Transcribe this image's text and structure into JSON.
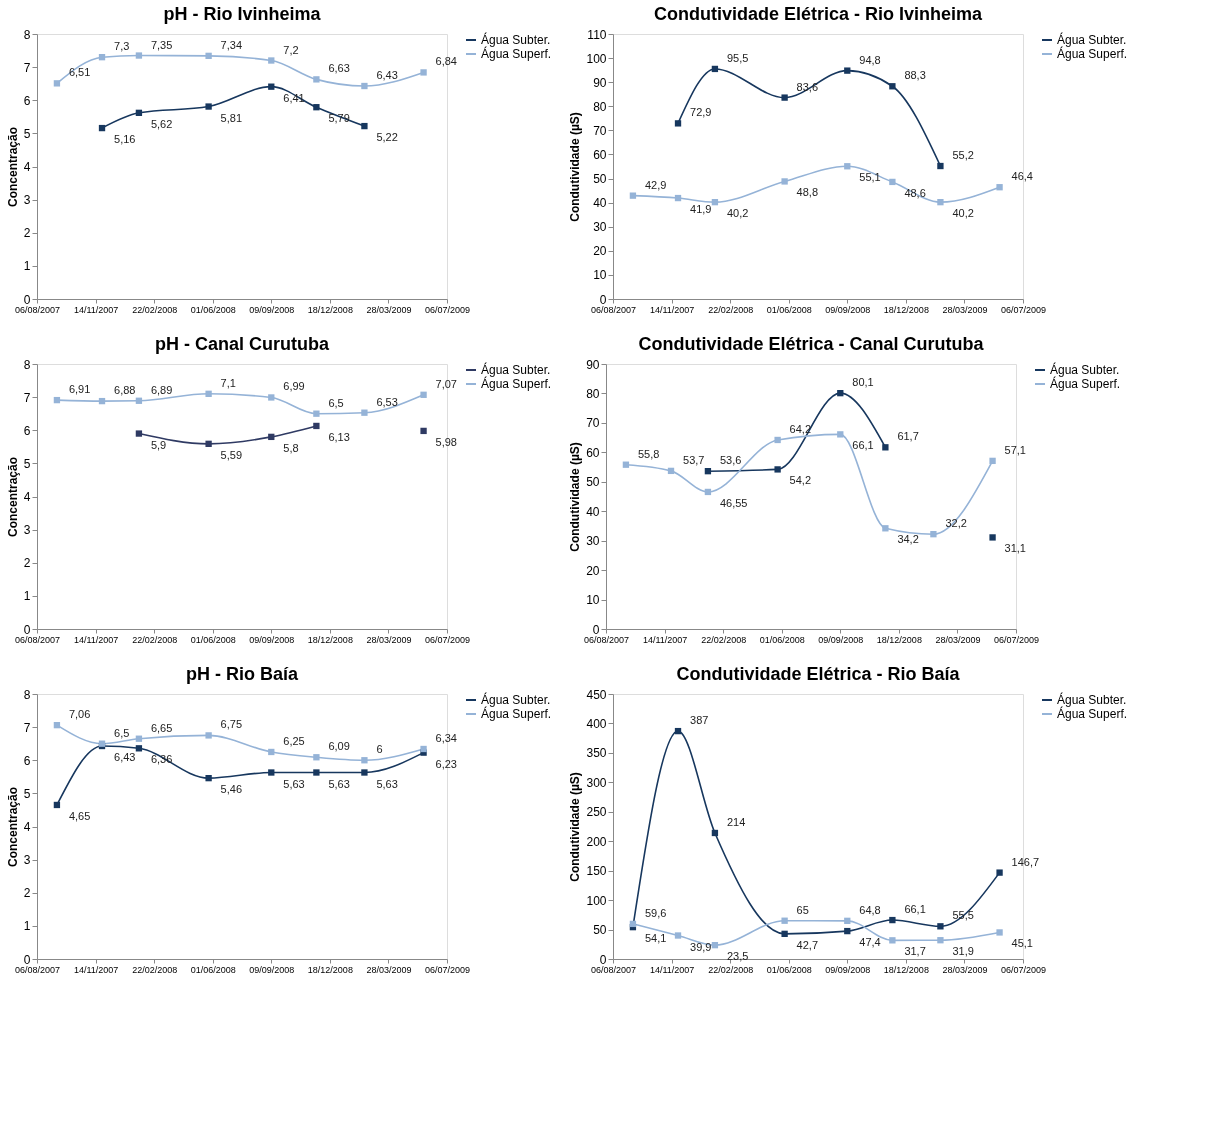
{
  "chart_data": [
    {
      "type": "line",
      "title": "pH - Rio Ivinheima",
      "ylabel": "Concentração",
      "x": [
        "2007-09-09",
        "2007-11-25",
        "2008-01-27",
        "2008-05-25",
        "2008-09-09",
        "2008-11-25",
        "2009-02-15",
        "2009-05-27"
      ],
      "xlim": [
        "2007-08-06",
        "2009-07-06"
      ],
      "xticks": [
        {
          "value": "2007-08-06",
          "label": "06/08/2007"
        },
        {
          "value": "2007-11-14",
          "label": "14/11/2007"
        },
        {
          "value": "2008-02-22",
          "label": "22/02/2008"
        },
        {
          "value": "2008-06-01",
          "label": "01/06/2008"
        },
        {
          "value": "2008-09-09",
          "label": "09/09/2008"
        },
        {
          "value": "2008-12-18",
          "label": "18/12/2008"
        },
        {
          "value": "2009-03-28",
          "label": "28/03/2009"
        },
        {
          "value": "2009-07-06",
          "label": "06/07/2009"
        }
      ],
      "ylim": [
        0,
        8
      ],
      "yticks": [
        0,
        1,
        2,
        3,
        4,
        5,
        6,
        7,
        8
      ],
      "grid": false,
      "legend": "right",
      "marker": "square",
      "series": [
        {
          "name": "Água Subter.",
          "color": "#17375e",
          "values": [
            null,
            5.16,
            5.62,
            5.81,
            6.41,
            5.79,
            5.22,
            null
          ],
          "value_labels": [
            null,
            "5,16",
            "5,62",
            "5,81",
            "6,41",
            "5,79",
            "5,22",
            null
          ]
        },
        {
          "name": "Água Superf.",
          "color": "#95b3d7",
          "values": [
            6.51,
            7.3,
            7.35,
            7.34,
            7.2,
            6.63,
            6.43,
            6.84
          ],
          "value_labels": [
            "6,51",
            "7,3",
            "7,35",
            "7,34",
            "7,2",
            "6,63",
            "6,43",
            "6,84"
          ]
        }
      ]
    },
    {
      "type": "line",
      "title": "Condutividade Elétrica - Rio Ivinheima",
      "ylabel": "Condutividade (µS)",
      "x": [
        "2007-09-09",
        "2007-11-25",
        "2008-01-27",
        "2008-05-25",
        "2008-09-09",
        "2008-11-25",
        "2009-02-15",
        "2009-05-27"
      ],
      "xlim": [
        "2007-08-06",
        "2009-07-06"
      ],
      "xticks": [
        {
          "value": "2007-08-06",
          "label": "06/08/2007"
        },
        {
          "value": "2007-11-14",
          "label": "14/11/2007"
        },
        {
          "value": "2008-02-22",
          "label": "22/02/2008"
        },
        {
          "value": "2008-06-01",
          "label": "01/06/2008"
        },
        {
          "value": "2008-09-09",
          "label": "09/09/2008"
        },
        {
          "value": "2008-12-18",
          "label": "18/12/2008"
        },
        {
          "value": "2009-03-28",
          "label": "28/03/2009"
        },
        {
          "value": "2009-07-06",
          "label": "06/07/2009"
        }
      ],
      "ylim": [
        0,
        110
      ],
      "yticks": [
        0,
        10,
        20,
        30,
        40,
        50,
        60,
        70,
        80,
        90,
        100,
        110
      ],
      "grid": false,
      "legend": "right",
      "marker": "square",
      "series": [
        {
          "name": "Água Subter.",
          "color": "#17375e",
          "values": [
            null,
            72.9,
            95.5,
            83.6,
            94.8,
            88.3,
            55.2,
            null
          ],
          "value_labels": [
            null,
            "72,9",
            "95,5",
            "83,6",
            "94,8",
            "88,3",
            "55,2",
            null
          ]
        },
        {
          "name": "Água Superf.",
          "color": "#95b3d7",
          "values": [
            42.9,
            41.9,
            40.2,
            48.8,
            55.1,
            48.6,
            40.2,
            46.4
          ],
          "value_labels": [
            "42,9",
            "41,9",
            "40,2",
            "48,8",
            "55,1",
            "48,6",
            "40,2",
            "46,4"
          ]
        }
      ]
    },
    {
      "type": "line",
      "title": "pH - Canal Curutuba",
      "ylabel": "Concentração",
      "x": [
        "2007-09-09",
        "2007-11-25",
        "2008-01-27",
        "2008-05-25",
        "2008-09-09",
        "2008-11-25",
        "2009-02-15",
        "2009-05-27"
      ],
      "xlim": [
        "2007-08-06",
        "2009-07-06"
      ],
      "xticks": [
        {
          "value": "2007-08-06",
          "label": "06/08/2007"
        },
        {
          "value": "2007-11-14",
          "label": "14/11/2007"
        },
        {
          "value": "2008-02-22",
          "label": "22/02/2008"
        },
        {
          "value": "2008-06-01",
          "label": "01/06/2008"
        },
        {
          "value": "2008-09-09",
          "label": "09/09/2008"
        },
        {
          "value": "2008-12-18",
          "label": "18/12/2008"
        },
        {
          "value": "2009-03-28",
          "label": "28/03/2009"
        },
        {
          "value": "2009-07-06",
          "label": "06/07/2009"
        }
      ],
      "ylim": [
        0,
        8
      ],
      "yticks": [
        0,
        1,
        2,
        3,
        4,
        5,
        6,
        7,
        8
      ],
      "grid": false,
      "legend": "right",
      "marker": "square",
      "series": [
        {
          "name": "Água Subter.",
          "color": "#2f3a63",
          "values": [
            null,
            null,
            5.9,
            5.59,
            5.8,
            6.13,
            null,
            5.98
          ],
          "value_labels": [
            null,
            null,
            "5,9",
            "5,59",
            "5,8",
            "6,13",
            null,
            "5,98"
          ]
        },
        {
          "name": "Água Superf.",
          "color": "#95b3d7",
          "values": [
            6.91,
            6.88,
            6.89,
            7.1,
            6.99,
            6.5,
            6.53,
            7.07
          ],
          "value_labels": [
            "6,91",
            "6,88",
            "6,89",
            "7,1",
            "6,99",
            "6,5",
            "6,53",
            "7,07"
          ]
        }
      ]
    },
    {
      "type": "line",
      "title": "Condutividade Elétrica - Canal Curutuba",
      "ylabel": "Condutividade (µS)",
      "x": [
        "2007-09-09",
        "2007-11-25",
        "2008-01-27",
        "2008-05-25",
        "2008-09-09",
        "2008-11-25",
        "2009-02-15",
        "2009-05-27"
      ],
      "xlim": [
        "2007-08-06",
        "2009-07-06"
      ],
      "xticks": [
        {
          "value": "2007-08-06",
          "label": "06/08/2007"
        },
        {
          "value": "2007-11-14",
          "label": "14/11/2007"
        },
        {
          "value": "2008-02-22",
          "label": "22/02/2008"
        },
        {
          "value": "2008-06-01",
          "label": "01/06/2008"
        },
        {
          "value": "2008-09-09",
          "label": "09/09/2008"
        },
        {
          "value": "2008-12-18",
          "label": "18/12/2008"
        },
        {
          "value": "2009-03-28",
          "label": "28/03/2009"
        },
        {
          "value": "2009-07-06",
          "label": "06/07/2009"
        }
      ],
      "ylim": [
        0,
        90
      ],
      "yticks": [
        0,
        10,
        20,
        30,
        40,
        50,
        60,
        70,
        80,
        90
      ],
      "grid": false,
      "legend": "right",
      "marker": "square",
      "series": [
        {
          "name": "Água Subter.",
          "color": "#17375e",
          "values": [
            null,
            null,
            53.6,
            54.2,
            80.1,
            61.7,
            null,
            31.1
          ],
          "value_labels": [
            null,
            null,
            "53,6",
            "54,2",
            "80,1",
            "61,7",
            null,
            "31,1"
          ]
        },
        {
          "name": "Água Superf.",
          "color": "#95b3d7",
          "values": [
            55.8,
            53.7,
            46.55,
            64.2,
            66.1,
            34.2,
            32.2,
            57.1
          ],
          "value_labels": [
            "55,8",
            "53,7",
            "46,55",
            "64,2",
            "66,1",
            "34,2",
            "32,2",
            "57,1"
          ]
        }
      ]
    },
    {
      "type": "line",
      "title": "pH - Rio Baía",
      "ylabel": "Concentração",
      "x": [
        "2007-09-09",
        "2007-11-25",
        "2008-01-27",
        "2008-05-25",
        "2008-09-09",
        "2008-11-25",
        "2009-02-15",
        "2009-05-27"
      ],
      "xlim": [
        "2007-08-06",
        "2009-07-06"
      ],
      "xticks": [
        {
          "value": "2007-08-06",
          "label": "06/08/2007"
        },
        {
          "value": "2007-11-14",
          "label": "14/11/2007"
        },
        {
          "value": "2008-02-22",
          "label": "22/02/2008"
        },
        {
          "value": "2008-06-01",
          "label": "01/06/2008"
        },
        {
          "value": "2008-09-09",
          "label": "09/09/2008"
        },
        {
          "value": "2008-12-18",
          "label": "18/12/2008"
        },
        {
          "value": "2009-03-28",
          "label": "28/03/2009"
        },
        {
          "value": "2009-07-06",
          "label": "06/07/2009"
        }
      ],
      "ylim": [
        0,
        8
      ],
      "yticks": [
        0,
        1,
        2,
        3,
        4,
        5,
        6,
        7,
        8
      ],
      "grid": false,
      "legend": "right",
      "marker": "square",
      "series": [
        {
          "name": "Água Subter.",
          "color": "#17375e",
          "values": [
            4.65,
            6.43,
            6.36,
            5.46,
            5.63,
            5.63,
            5.63,
            6.23
          ],
          "value_labels": [
            "4,65",
            "6,43",
            "6,36",
            "5,46",
            "5,63",
            "5,63",
            "5,63",
            "6,23"
          ]
        },
        {
          "name": "Água Superf.",
          "color": "#95b3d7",
          "values": [
            7.06,
            6.5,
            6.65,
            6.75,
            6.25,
            6.09,
            6,
            6.34
          ],
          "value_labels": [
            "7,06",
            "6,5",
            "6,65",
            "6,75",
            "6,25",
            "6,09",
            "6",
            "6,34"
          ]
        }
      ]
    },
    {
      "type": "line",
      "title": "Condutividade Elétrica - Rio Baía",
      "ylabel": "Condutividade (µS)",
      "x": [
        "2007-09-09",
        "2007-11-25",
        "2008-01-27",
        "2008-05-25",
        "2008-09-09",
        "2008-11-25",
        "2009-02-15",
        "2009-05-27"
      ],
      "xlim": [
        "2007-08-06",
        "2009-07-06"
      ],
      "xticks": [
        {
          "value": "2007-08-06",
          "label": "06/08/2007"
        },
        {
          "value": "2007-11-14",
          "label": "14/11/2007"
        },
        {
          "value": "2008-02-22",
          "label": "22/02/2008"
        },
        {
          "value": "2008-06-01",
          "label": "01/06/2008"
        },
        {
          "value": "2008-09-09",
          "label": "09/09/2008"
        },
        {
          "value": "2008-12-18",
          "label": "18/12/2008"
        },
        {
          "value": "2009-03-28",
          "label": "28/03/2009"
        },
        {
          "value": "2009-07-06",
          "label": "06/07/2009"
        }
      ],
      "ylim": [
        0,
        450
      ],
      "yticks": [
        0,
        50,
        100,
        150,
        200,
        250,
        300,
        350,
        400,
        450
      ],
      "grid": false,
      "legend": "right",
      "marker": "square",
      "series": [
        {
          "name": "Água Subter.",
          "color": "#17375e",
          "values": [
            54.1,
            387,
            214,
            42.7,
            47.4,
            66.1,
            55.5,
            146.7
          ],
          "value_labels": [
            "54,1",
            "387",
            "214",
            "42,7",
            "47,4",
            "66,1",
            "55,5",
            "146,7"
          ]
        },
        {
          "name": "Água Superf.",
          "color": "#95b3d7",
          "values": [
            59.6,
            39.9,
            23.5,
            65,
            64.8,
            31.7,
            31.9,
            45.1
          ],
          "value_labels": [
            "59,6",
            "39,9",
            "23,5",
            "65",
            "64,8",
            "31,7",
            "31,9",
            "45,1"
          ]
        }
      ]
    }
  ]
}
